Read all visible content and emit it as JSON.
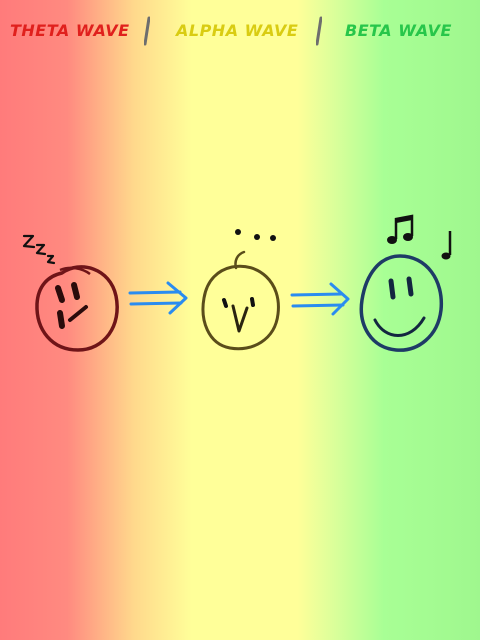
{
  "header": {
    "wave1": "THETA WAVE",
    "wave2": "ALPHA WAVE",
    "wave3": "BETA WAVE"
  },
  "faces": [
    {
      "name": "sleepy-face",
      "symbol": "zzz",
      "color": "#7a1418"
    },
    {
      "name": "awake-face",
      "symbol": "…",
      "color": "#5a4d1a"
    },
    {
      "name": "happy-face",
      "symbol": "♫ ♪",
      "color": "#1e3b66"
    }
  ],
  "colors": {
    "theta": "#e0201d",
    "alpha": "#d9cc12",
    "beta": "#27c64a",
    "arrow": "#2a8cf0"
  }
}
